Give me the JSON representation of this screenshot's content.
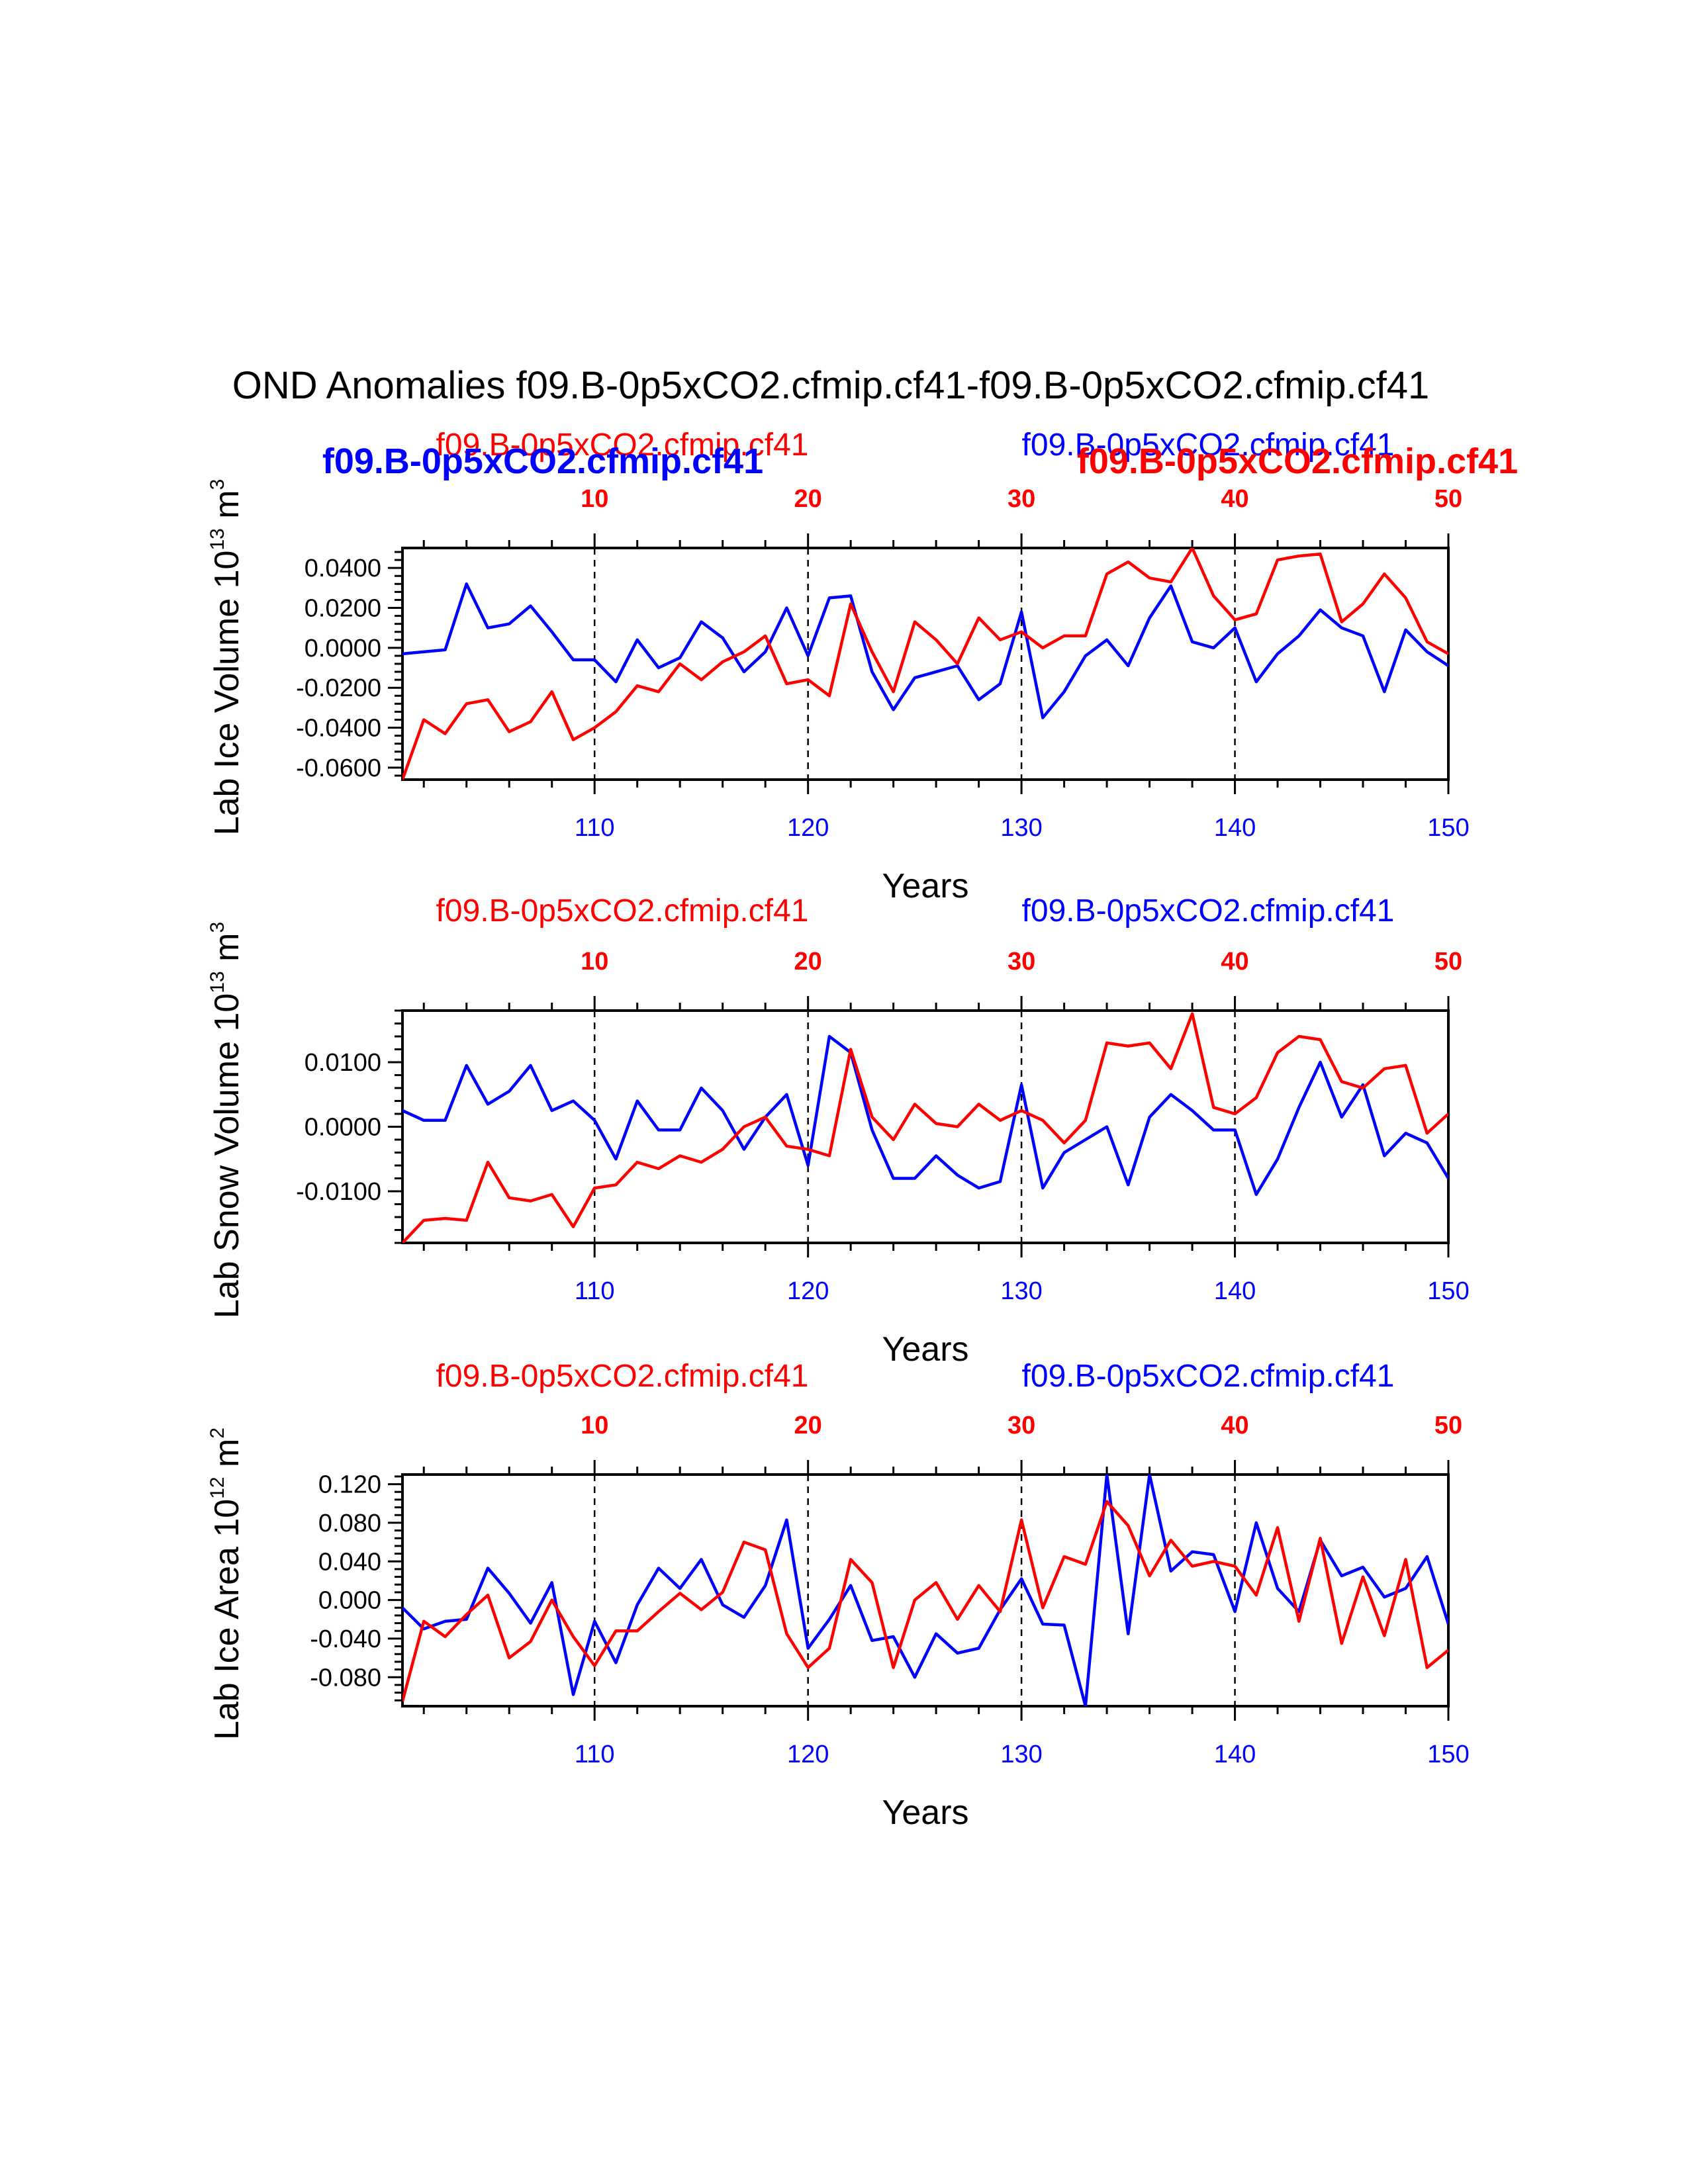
{
  "title": "OND Anomalies f09.B-0p5xCO2.cfmip.cf41-f09.B-0p5xCO2.cfmip.cf41",
  "legend": {
    "red_run": "f09.B-0p5xCO2.cfmip.cf41",
    "blue_run": "f09.B-0p5xCO2.cfmip.cf41",
    "blue_run_bold": "f09.B-0p5xCO2.cfmip.cf41",
    "red_run_bold": "f09.B-0p5xCO2.cfmip.cf41"
  },
  "colors": {
    "blue": "#0000ff",
    "red": "#ff0000"
  },
  "chart_data": [
    {
      "type": "line",
      "ylabel_main": "Lab Ice Volume 10",
      "ylabel_exp": "13",
      "ylabel_unit": " m",
      "ylabel_unit_exp": "3",
      "xlabel": "Years",
      "xlim": [
        101,
        150
      ],
      "ylim": [
        -0.066,
        0.05
      ],
      "yticks": [
        -0.06,
        -0.04,
        -0.02,
        0.0,
        0.02,
        0.04
      ],
      "ytick_labels": [
        "-0.0600",
        "-0.0400",
        "-0.0200",
        "0.0000",
        "0.0200",
        "0.0400"
      ],
      "xtick_labels_bottom": [
        "110",
        "120",
        "130",
        "140",
        "150"
      ],
      "xtick_labels_top": [
        "10",
        "20",
        "30",
        "40",
        "50"
      ],
      "series": [
        {
          "name": "f09.B-0p5xCO2.cfmip.cf41",
          "color": "blue",
          "values": [
            -0.003,
            -0.002,
            -0.001,
            0.032,
            0.01,
            0.012,
            0.021,
            0.008,
            -0.006,
            -0.006,
            -0.017,
            0.004,
            -0.01,
            -0.005,
            0.013,
            0.005,
            -0.012,
            -0.002,
            0.02,
            -0.004,
            0.025,
            0.026,
            -0.012,
            -0.031,
            -0.015,
            -0.012,
            -0.009,
            -0.026,
            -0.018,
            0.018,
            -0.035,
            -0.022,
            -0.004,
            0.004,
            -0.009,
            0.015,
            0.031,
            0.003,
            0.0,
            0.01,
            -0.017,
            -0.003,
            0.006,
            0.019,
            0.01,
            0.006,
            -0.022,
            0.009,
            -0.002,
            -0.009
          ]
        },
        {
          "name": "f09.B-0p5xCO2.cfmip.cf41",
          "color": "red",
          "values": [
            -0.066,
            -0.036,
            -0.043,
            -0.028,
            -0.026,
            -0.042,
            -0.037,
            -0.022,
            -0.046,
            -0.04,
            -0.032,
            -0.019,
            -0.022,
            -0.008,
            -0.016,
            -0.007,
            -0.002,
            0.006,
            -0.018,
            -0.016,
            -0.024,
            0.022,
            -0.002,
            -0.022,
            0.013,
            0.004,
            -0.008,
            0.015,
            0.004,
            0.008,
            0.0,
            0.006,
            0.006,
            0.037,
            0.043,
            0.035,
            0.033,
            0.05,
            0.026,
            0.014,
            0.017,
            0.044,
            0.046,
            0.047,
            0.013,
            0.022,
            0.037,
            0.025,
            0.003,
            -0.003
          ]
        }
      ]
    },
    {
      "type": "line",
      "ylabel_main": "Lab Snow Volume 10",
      "ylabel_exp": "13",
      "ylabel_unit": " m",
      "ylabel_unit_exp": "3",
      "xlabel": "Years",
      "xlim": [
        101,
        150
      ],
      "ylim": [
        -0.018,
        0.018
      ],
      "yticks": [
        -0.01,
        0.0,
        0.01
      ],
      "ytick_labels": [
        "-0.0100",
        "0.0000",
        "0.0100"
      ],
      "xtick_labels_bottom": [
        "110",
        "120",
        "130",
        "140",
        "150"
      ],
      "xtick_labels_top": [
        "10",
        "20",
        "30",
        "40",
        "50"
      ],
      "series": [
        {
          "name": "f09.B-0p5xCO2.cfmip.cf41",
          "color": "blue",
          "values": [
            0.0025,
            0.001,
            0.001,
            0.0095,
            0.0035,
            0.0055,
            0.0095,
            0.0025,
            0.004,
            0.001,
            -0.005,
            0.004,
            -0.0005,
            -0.0005,
            0.006,
            0.0025,
            -0.0035,
            0.0015,
            0.005,
            -0.006,
            0.014,
            0.0115,
            -0.0005,
            -0.008,
            -0.008,
            -0.0045,
            -0.0075,
            -0.0095,
            -0.0085,
            0.0065,
            -0.0095,
            -0.004,
            -0.002,
            0.0,
            -0.009,
            0.0015,
            0.005,
            0.0025,
            -0.0005,
            -0.0005,
            -0.0105,
            -0.005,
            0.003,
            0.01,
            0.0015,
            0.0065,
            -0.0045,
            -0.001,
            -0.0025,
            -0.008
          ]
        },
        {
          "name": "f09.B-0p5xCO2.cfmip.cf41",
          "color": "red",
          "values": [
            -0.018,
            -0.0145,
            -0.0142,
            -0.0145,
            -0.0055,
            -0.011,
            -0.0115,
            -0.0105,
            -0.0155,
            -0.0095,
            -0.009,
            -0.0055,
            -0.0065,
            -0.0045,
            -0.0055,
            -0.0035,
            0.0,
            0.0015,
            -0.003,
            -0.0035,
            -0.0045,
            0.012,
            0.0015,
            -0.002,
            0.0035,
            0.0005,
            0.0,
            0.0035,
            0.001,
            0.0025,
            0.001,
            -0.0025,
            0.001,
            0.013,
            0.0125,
            0.013,
            0.009,
            0.0175,
            0.003,
            0.002,
            0.0045,
            0.0115,
            0.014,
            0.0135,
            0.007,
            0.006,
            0.009,
            0.0095,
            -0.001,
            0.002
          ]
        }
      ]
    },
    {
      "type": "line",
      "ylabel_main": "Lab Ice Area 10",
      "ylabel_exp": "12",
      "ylabel_unit": " m",
      "ylabel_unit_exp": "2",
      "xlabel": "Years",
      "xlim": [
        101,
        150
      ],
      "ylim": [
        -0.11,
        0.13
      ],
      "yticks": [
        -0.08,
        -0.04,
        0.0,
        0.04,
        0.08,
        0.12
      ],
      "ytick_labels": [
        "-0.080",
        "-0.040",
        "0.000",
        "0.040",
        "0.080",
        "0.120"
      ],
      "xtick_labels_bottom": [
        "110",
        "120",
        "130",
        "140",
        "150"
      ],
      "xtick_labels_top": [
        "10",
        "20",
        "30",
        "40",
        "50"
      ],
      "series": [
        {
          "name": "f09.B-0p5xCO2.cfmip.cf41",
          "color": "blue",
          "values": [
            -0.008,
            -0.03,
            -0.022,
            -0.02,
            0.033,
            0.007,
            -0.024,
            0.018,
            -0.098,
            -0.022,
            -0.065,
            -0.005,
            0.033,
            0.012,
            0.042,
            -0.005,
            -0.018,
            0.015,
            0.083,
            -0.05,
            -0.02,
            0.015,
            -0.042,
            -0.038,
            -0.08,
            -0.035,
            -0.055,
            -0.05,
            -0.01,
            0.022,
            -0.025,
            -0.026,
            -0.11,
            0.13,
            -0.035,
            0.13,
            0.03,
            0.05,
            0.047,
            -0.012,
            0.08,
            0.012,
            -0.012,
            0.062,
            0.025,
            0.034,
            0.003,
            0.012,
            0.045,
            -0.025
          ]
        },
        {
          "name": "f09.B-0p5xCO2.cfmip.cf41",
          "color": "red",
          "values": [
            -0.105,
            -0.022,
            -0.038,
            -0.015,
            0.005,
            -0.06,
            -0.043,
            0.0,
            -0.038,
            -0.068,
            -0.032,
            -0.032,
            -0.012,
            0.007,
            -0.01,
            0.008,
            0.06,
            0.052,
            -0.035,
            -0.07,
            -0.05,
            0.042,
            0.018,
            -0.07,
            0.0,
            0.018,
            -0.02,
            0.015,
            -0.012,
            0.083,
            -0.008,
            0.045,
            0.037,
            0.102,
            0.077,
            0.025,
            0.062,
            0.035,
            0.04,
            0.035,
            0.005,
            0.075,
            -0.022,
            0.064,
            -0.045,
            0.024,
            -0.037,
            0.042,
            -0.07,
            -0.052
          ]
        }
      ]
    }
  ]
}
